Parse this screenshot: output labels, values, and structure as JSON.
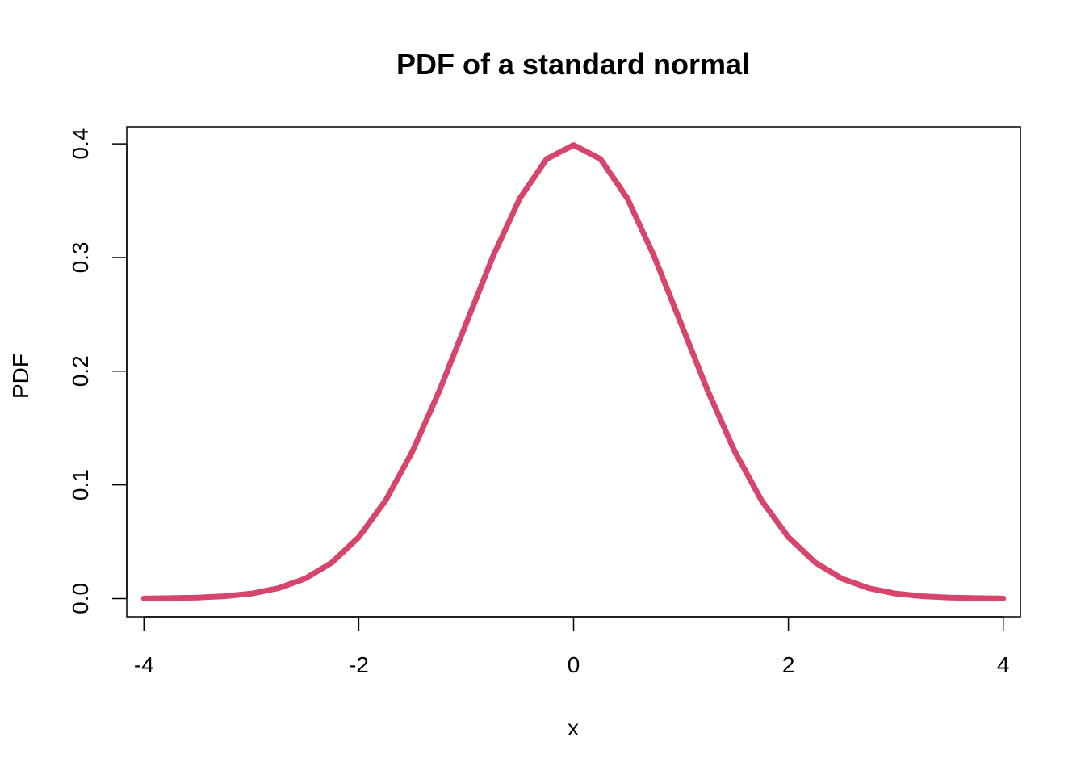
{
  "chart_data": {
    "type": "line",
    "title": "PDF of a standard normal",
    "xlabel": "x",
    "ylabel": "PDF",
    "xlim": [
      -4.16,
      4.16
    ],
    "ylim": [
      -0.016,
      0.415
    ],
    "x_ticks": [
      -4,
      -2,
      0,
      2,
      4
    ],
    "x_tick_labels": [
      "-4",
      "-2",
      "0",
      "2",
      "4"
    ],
    "y_ticks": [
      0.0,
      0.1,
      0.2,
      0.3,
      0.4
    ],
    "y_tick_labels": [
      "0.0",
      "0.1",
      "0.2",
      "0.3",
      "0.4"
    ],
    "grid": false,
    "legend": "none",
    "series": [
      {
        "color": "#d6456b",
        "x": [
          -4.0,
          -3.75,
          -3.5,
          -3.25,
          -3.0,
          -2.75,
          -2.5,
          -2.25,
          -2.0,
          -1.75,
          -1.5,
          -1.25,
          -1.0,
          -0.75,
          -0.5,
          -0.25,
          0.0,
          0.25,
          0.5,
          0.75,
          1.0,
          1.25,
          1.5,
          1.75,
          2.0,
          2.25,
          2.5,
          2.75,
          3.0,
          3.25,
          3.5,
          3.75,
          4.0
        ],
        "y": [
          0.0001,
          0.0004,
          0.0009,
          0.002,
          0.0044,
          0.0091,
          0.0175,
          0.0317,
          0.054,
          0.0863,
          0.1295,
          0.1826,
          0.242,
          0.3011,
          0.3521,
          0.3867,
          0.3989,
          0.3867,
          0.3521,
          0.3011,
          0.242,
          0.1826,
          0.1295,
          0.0863,
          0.054,
          0.0317,
          0.0175,
          0.0091,
          0.0044,
          0.002,
          0.0009,
          0.0004,
          0.0001
        ]
      }
    ]
  }
}
